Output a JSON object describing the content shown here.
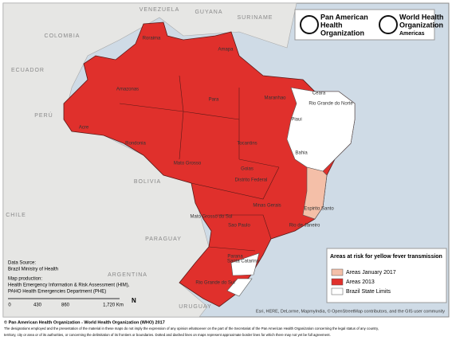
{
  "header": {
    "paho": [
      "Pan American",
      "Health",
      "Organization"
    ],
    "who": [
      "World Health",
      "Organization"
    ],
    "who_region": "Americas"
  },
  "map": {
    "countries": [
      "COLOMBIA",
      "VENEZUELA",
      "GUYANA",
      "SURINAME",
      "ECUADOR",
      "PERÚ",
      "BOLIVIA",
      "PARAGUAY",
      "URUGUAY",
      "ARGENTINA",
      "CHILE"
    ],
    "states": [
      "Roraima",
      "Amapa",
      "Amazonas",
      "Para",
      "Maranhao",
      "Ceara",
      "Rio Grande do Norte",
      "Piaui",
      "Acre",
      "Rondonia",
      "Tocantins",
      "Bahia",
      "Mato Grosso",
      "Goias",
      "Distrito Federal",
      "Mato Grosso do Sul",
      "Minas Gerais",
      "Sao Paulo",
      "Espirito Santo",
      "Rio de Janeiro",
      "Parana",
      "Santa Catarina",
      "Rio Grande do Sul"
    ]
  },
  "legend": {
    "title": "Areas at risk for yellow fever transmission",
    "items": [
      {
        "label": "Areas January 2017",
        "color": "#f4bfa8"
      },
      {
        "label": "Areas 2013",
        "color": "#e0302c"
      },
      {
        "label": "Brazil State Limits",
        "color": "#ffffff"
      }
    ]
  },
  "scale_bar": {
    "labels": [
      "0",
      "430",
      "860",
      "1,720 Km"
    ],
    "north": "N"
  },
  "credits": {
    "data_source": [
      "Data Source:",
      "Brazil Ministry of Health"
    ],
    "map_production": [
      "Map production:",
      "Health Emergency Information & Risk Assessment (HIM),",
      "PAHO Health Emergencies Department (PHE)"
    ],
    "attribution": "Esri, HERE, DeLorme, MapmyIndia, © OpenStreetMap contributors, and the GIS user community"
  },
  "footer": [
    "© Pan American Health Organization - World Health Organization (WHO) 2017",
    "The designations employed and the presentation of the material in these maps do not imply the expression of any opinion whatsoever on the part of the Secretariat of the Pan American Health Organization concerning the legal status of any country,",
    "territory, city or area or of its authorities, or concerning the delimitation of its frontiers or boundaries. Dotted and dashed lines on maps represent approximate border lines for which there may not yet be full agreement."
  ]
}
